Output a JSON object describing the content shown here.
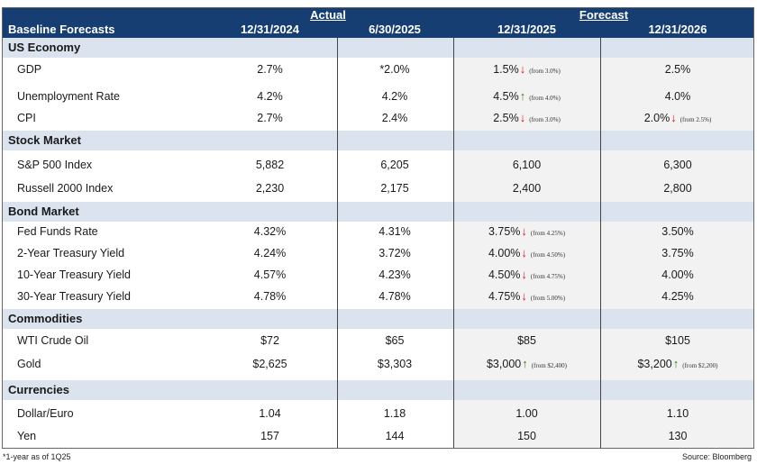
{
  "header": {
    "title": "Baseline Forecasts",
    "group_actual": "Actual",
    "group_forecast": "Forecast",
    "columns": [
      "12/31/2024",
      "6/30/2025",
      "12/31/2025",
      "12/31/2026"
    ]
  },
  "sections": [
    {
      "name": "US Economy",
      "rows": [
        {
          "label": "GDP",
          "a1": "2.7%",
          "a2": "*2.0%",
          "f1": "1.5%",
          "f1_arrow": "down",
          "f1_from": "(from 3.0%)",
          "f2": "2.5%",
          "f2_arrow": "",
          "f2_from": ""
        },
        {
          "label": "Unemployment Rate",
          "a1": "4.2%",
          "a2": "4.2%",
          "f1": "4.5%",
          "f1_arrow": "up",
          "f1_from": "(from 4.0%)",
          "f2": "4.0%",
          "f2_arrow": "",
          "f2_from": ""
        },
        {
          "label": "CPI",
          "a1": "2.7%",
          "a2": "2.4%",
          "f1": "2.5%",
          "f1_arrow": "down",
          "f1_from": "(from 3.0%)",
          "f2": "2.0%",
          "f2_arrow": "down",
          "f2_from": "(from 2.5%)"
        }
      ]
    },
    {
      "name": "Stock Market",
      "rows": [
        {
          "label": "S&P 500 Index",
          "a1": "5,882",
          "a2": "6,205",
          "f1": "6,100",
          "f1_arrow": "",
          "f1_from": "",
          "f2": "6,300",
          "f2_arrow": "",
          "f2_from": ""
        },
        {
          "label": "Russell 2000 Index",
          "a1": "2,230",
          "a2": "2,175",
          "f1": "2,400",
          "f1_arrow": "",
          "f1_from": "",
          "f2": "2,800",
          "f2_arrow": "",
          "f2_from": ""
        }
      ]
    },
    {
      "name": "Bond Market",
      "rows": [
        {
          "label": "Fed Funds Rate",
          "a1": "4.32%",
          "a2": "4.31%",
          "f1": "3.75%",
          "f1_arrow": "down",
          "f1_from": "(from 4.25%)",
          "f2": "3.50%",
          "f2_arrow": "",
          "f2_from": ""
        },
        {
          "label": "2-Year Treasury Yield",
          "a1": "4.24%",
          "a2": "3.72%",
          "f1": "4.00%",
          "f1_arrow": "down",
          "f1_from": "(from 4.50%)",
          "f2": "3.75%",
          "f2_arrow": "",
          "f2_from": ""
        },
        {
          "label": "10-Year Treasury Yield",
          "a1": "4.57%",
          "a2": "4.23%",
          "f1": "4.50%",
          "f1_arrow": "down",
          "f1_from": "(from 4.75%)",
          "f2": "4.00%",
          "f2_arrow": "",
          "f2_from": ""
        },
        {
          "label": "30-Year Treasury Yield",
          "a1": "4.78%",
          "a2": "4.78%",
          "f1": "4.75%",
          "f1_arrow": "down",
          "f1_from": "(from 5.00%)",
          "f2": "4.25%",
          "f2_arrow": "",
          "f2_from": ""
        }
      ]
    },
    {
      "name": "Commodities",
      "rows": [
        {
          "label": "WTI Crude Oil",
          "a1": "$72",
          "a2": "$65",
          "f1": "$85",
          "f1_arrow": "",
          "f1_from": "",
          "f2": "$105",
          "f2_arrow": "",
          "f2_from": ""
        },
        {
          "label": "Gold",
          "a1": "$2,625",
          "a2": "$3,303",
          "f1": "$3,000",
          "f1_arrow": "up",
          "f1_from": "(from $2,400)",
          "f2": "$3,200",
          "f2_arrow": "up",
          "f2_from": "(from $2,200)"
        }
      ]
    },
    {
      "name": "Currencies",
      "rows": [
        {
          "label": "Dollar/Euro",
          "a1": "1.04",
          "a2": "1.18",
          "f1": "1.00",
          "f1_arrow": "",
          "f1_from": "",
          "f2": "1.10",
          "f2_arrow": "",
          "f2_from": ""
        },
        {
          "label": "Yen",
          "a1": "157",
          "a2": "144",
          "f1": "150",
          "f1_arrow": "",
          "f1_from": "",
          "f2": "130",
          "f2_arrow": "",
          "f2_from": ""
        }
      ]
    }
  ],
  "footnote": "*1-year as of 1Q25",
  "source": "Source: Bloomberg",
  "colors": {
    "header_bg": "#163e72",
    "section_bg": "#dbe3ef",
    "forecast_bg": "#f2f2f2",
    "arrow_down": "#e8121b",
    "arrow_up": "#3f7d24"
  }
}
